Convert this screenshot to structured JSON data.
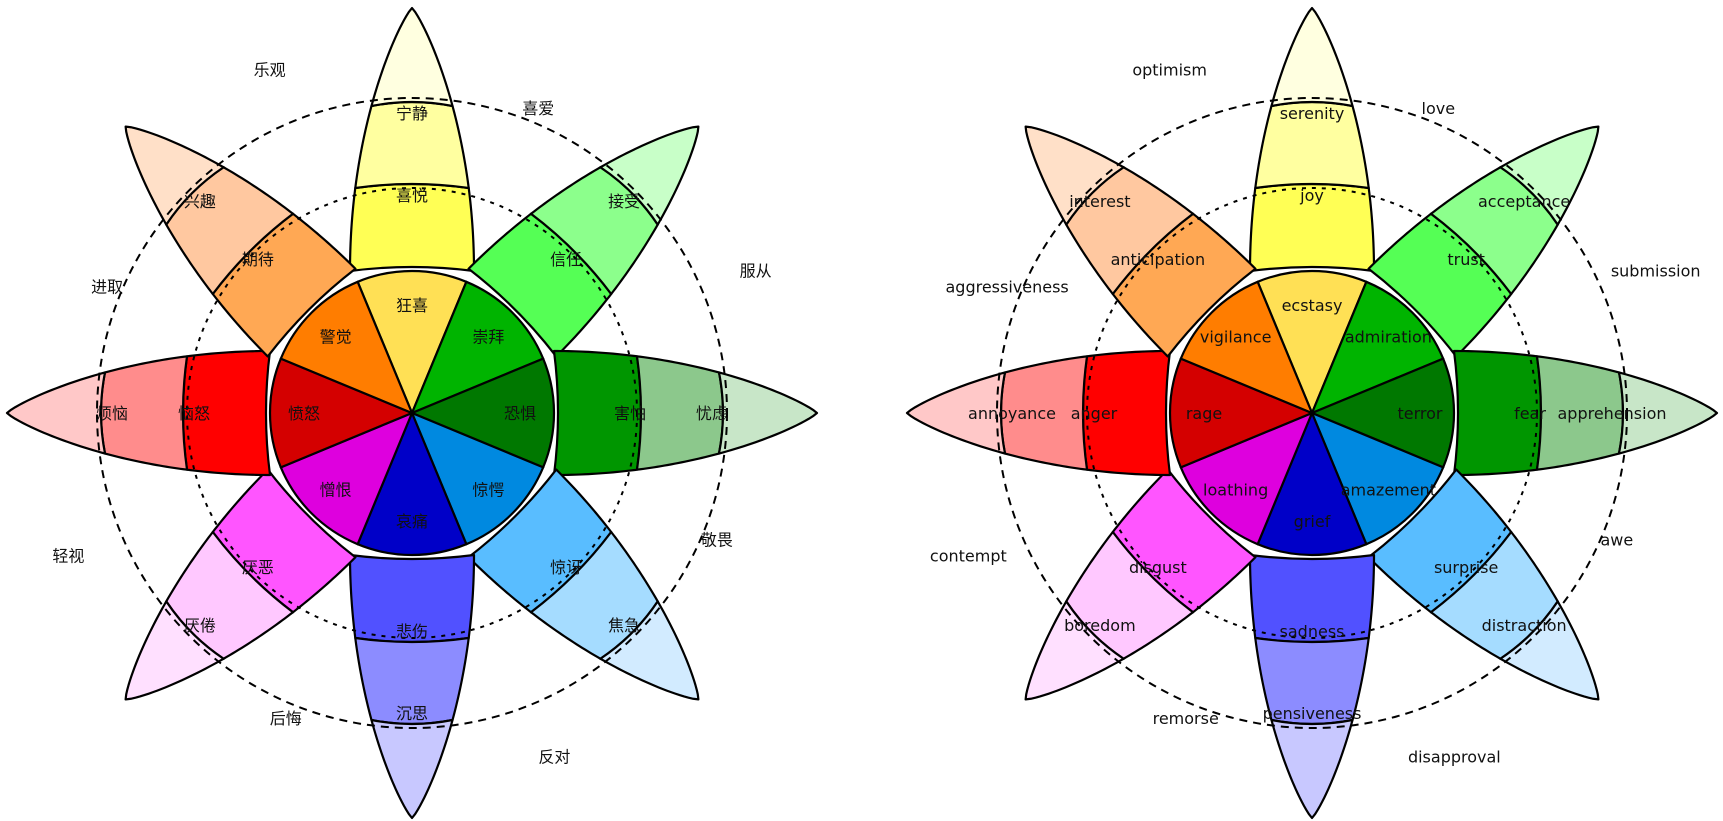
{
  "wheels": [
    {
      "id": "chinese",
      "petals": [
        {
          "name": "joy-petal",
          "colors": [
            "#ffffe0",
            "#ffffa0",
            "#ffff55",
            "#ffe055"
          ],
          "labels": [
            "宁静",
            "喜悦",
            "狂喜"
          ]
        },
        {
          "name": "trust-petal",
          "colors": [
            "#c8ffc8",
            "#8cff8c",
            "#55ff55",
            "#00b400"
          ],
          "labels": [
            "接受",
            "信任",
            "崇拜"
          ]
        },
        {
          "name": "fear-petal",
          "colors": [
            "#c8e6c8",
            "#8cc88c",
            "#009600",
            "#007800"
          ],
          "labels": [
            "忧虑",
            "害怕",
            "恐惧"
          ]
        },
        {
          "name": "surprise-petal",
          "colors": [
            "#d2ebff",
            "#a5dcff",
            "#59bdff",
            "#0089e0"
          ],
          "labels": [
            "焦急",
            "惊讶",
            "惊愕"
          ]
        },
        {
          "name": "sadness-petal",
          "colors": [
            "#c8c8ff",
            "#8c8cff",
            "#5151ff",
            "#0000c8"
          ],
          "labels": [
            "沉思",
            "悲伤",
            "哀痛"
          ]
        },
        {
          "name": "disgust-petal",
          "colors": [
            "#ffe0ff",
            "#ffc8ff",
            "#ff55ff",
            "#de00de"
          ],
          "labels": [
            "厌倦",
            "厌恶",
            "憎恨"
          ]
        },
        {
          "name": "anger-petal",
          "colors": [
            "#ffc8c8",
            "#ff8c8c",
            "#ff0000",
            "#d40000"
          ],
          "labels": [
            "烦恼",
            "恼怒",
            "愤怒"
          ]
        },
        {
          "name": "anticipation-petal",
          "colors": [
            "#ffe0c8",
            "#ffc8a0",
            "#ffa854",
            "#ff7d00"
          ],
          "labels": [
            "兴趣",
            "期待",
            "警觉"
          ]
        }
      ],
      "dyads": [
        "喜爱",
        "服从",
        "敬畏",
        "反对",
        "后悔",
        "轻视",
        "进取",
        "乐观"
      ]
    },
    {
      "id": "english",
      "petals": [
        {
          "name": "joy-petal",
          "colors": [
            "#ffffe0",
            "#ffffa0",
            "#ffff55",
            "#ffe055"
          ],
          "labels": [
            "serenity",
            "joy",
            "ecstasy"
          ]
        },
        {
          "name": "trust-petal",
          "colors": [
            "#c8ffc8",
            "#8cff8c",
            "#55ff55",
            "#00b400"
          ],
          "labels": [
            "acceptance",
            "trust",
            "admiration"
          ]
        },
        {
          "name": "fear-petal",
          "colors": [
            "#c8e6c8",
            "#8cc88c",
            "#009600",
            "#007800"
          ],
          "labels": [
            "apprehension",
            "fear",
            "terror"
          ]
        },
        {
          "name": "surprise-petal",
          "colors": [
            "#d2ebff",
            "#a5dcff",
            "#59bdff",
            "#0089e0"
          ],
          "labels": [
            "distraction",
            "surprise",
            "amazement"
          ]
        },
        {
          "name": "sadness-petal",
          "colors": [
            "#c8c8ff",
            "#8c8cff",
            "#5151ff",
            "#0000c8"
          ],
          "labels": [
            "pensiveness",
            "sadness",
            "grief"
          ]
        },
        {
          "name": "disgust-petal",
          "colors": [
            "#ffe0ff",
            "#ffc8ff",
            "#ff55ff",
            "#de00de"
          ],
          "labels": [
            "boredom",
            "disgust",
            "loathing"
          ]
        },
        {
          "name": "anger-petal",
          "colors": [
            "#ffc8c8",
            "#ff8c8c",
            "#ff0000",
            "#d40000"
          ],
          "labels": [
            "annoyance",
            "anger",
            "rage"
          ]
        },
        {
          "name": "anticipation-petal",
          "colors": [
            "#ffe0c8",
            "#ffc8a0",
            "#ffa854",
            "#ff7d00"
          ],
          "labels": [
            "interest",
            "anticipation",
            "vigilance"
          ]
        }
      ],
      "dyads": [
        "love",
        "submission",
        "awe",
        "disapproval",
        "remorse",
        "contempt",
        "aggressiveness",
        "optimism"
      ]
    }
  ]
}
